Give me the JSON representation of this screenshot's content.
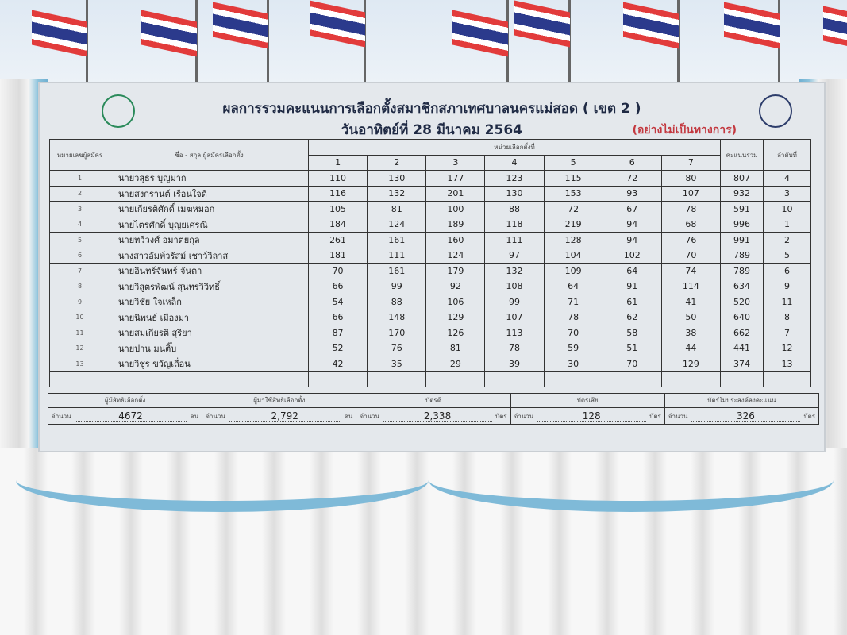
{
  "board": {
    "title": "ผลการรวมคะแนนการเลือกตั้งสมาชิกสภาเทศบาลนครแม่สอด ( เขต 2 )",
    "date": "วันอาทิตย์ที่  28  มีนาคม  2564",
    "status": "(อย่างไม่เป็นทางการ)",
    "headers": {
      "number": "หมายเลขผู้สมัคร",
      "name": "ชื่อ - สกุล ผู้สมัครเลือกตั้ง",
      "units": "หน่วยเลือกตั้งที่",
      "unit_numbers": [
        "1",
        "2",
        "3",
        "4",
        "5",
        "6",
        "7"
      ],
      "total": "คะแนนรวม",
      "rank": "ลำดับที่"
    },
    "rows": [
      {
        "no": "1",
        "name": "นายวสุธร  บุญมาก",
        "votes": [
          "110",
          "130",
          "177",
          "123",
          "115",
          "72",
          "80"
        ],
        "total": "807",
        "rank": "4"
      },
      {
        "no": "2",
        "name": "นายสงกรานต์  เรือนใจดี",
        "votes": [
          "116",
          "132",
          "201",
          "130",
          "153",
          "93",
          "107"
        ],
        "total": "932",
        "rank": "3"
      },
      {
        "no": "3",
        "name": "นายเกียรติศักดิ์  เมฆหมอก",
        "votes": [
          "105",
          "81",
          "100",
          "88",
          "72",
          "67",
          "78"
        ],
        "total": "591",
        "rank": "10"
      },
      {
        "no": "4",
        "name": "นายไตรศักดิ์  บุญยเศรณี",
        "votes": [
          "184",
          "124",
          "189",
          "118",
          "219",
          "94",
          "68"
        ],
        "total": "996",
        "rank": "1"
      },
      {
        "no": "5",
        "name": "นายทวีวงศ์  อมาตยกุล",
        "votes": [
          "261",
          "161",
          "160",
          "111",
          "128",
          "94",
          "76"
        ],
        "total": "991",
        "rank": "2"
      },
      {
        "no": "6",
        "name": "นางสาวอัมพ์วรัสม์  เชาว์วิลาส",
        "votes": [
          "181",
          "111",
          "124",
          "97",
          "104",
          "102",
          "70"
        ],
        "total": "789",
        "rank": "5"
      },
      {
        "no": "7",
        "name": "นายอินทร์จันทร์  จันตา",
        "votes": [
          "70",
          "161",
          "179",
          "132",
          "109",
          "64",
          "74"
        ],
        "total": "789",
        "rank": "6"
      },
      {
        "no": "8",
        "name": "นายวิสูตรพัฒน์  สุนทรวิวิทธิ์",
        "votes": [
          "66",
          "99",
          "92",
          "108",
          "64",
          "91",
          "114"
        ],
        "total": "634",
        "rank": "9"
      },
      {
        "no": "9",
        "name": "นายวิชัย  ใจเหล็ก",
        "votes": [
          "54",
          "88",
          "106",
          "99",
          "71",
          "61",
          "41"
        ],
        "total": "520",
        "rank": "11"
      },
      {
        "no": "10",
        "name": "นายนิพนธ์  เมืองมา",
        "votes": [
          "66",
          "148",
          "129",
          "107",
          "78",
          "62",
          "50"
        ],
        "total": "640",
        "rank": "8"
      },
      {
        "no": "11",
        "name": "นายสมเกียรติ  สุริยา",
        "votes": [
          "87",
          "170",
          "126",
          "113",
          "70",
          "58",
          "38"
        ],
        "total": "662",
        "rank": "7"
      },
      {
        "no": "12",
        "name": "นายปาน  มนติ๊บ",
        "votes": [
          "52",
          "76",
          "81",
          "78",
          "59",
          "51",
          "44"
        ],
        "total": "441",
        "rank": "12"
      },
      {
        "no": "13",
        "name": "นายวิชูร  ขวัญเถื่อน",
        "votes": [
          "42",
          "35",
          "29",
          "39",
          "30",
          "70",
          "129"
        ],
        "total": "374",
        "rank": "13"
      }
    ],
    "summary": [
      {
        "label": "ผู้มีสิทธิเลือกตั้ง",
        "prefix": "จำนวน",
        "value": "4672",
        "unit": "คน"
      },
      {
        "label": "ผู้มาใช้สิทธิเลือกตั้ง",
        "prefix": "จำนวน",
        "value": "2,792",
        "unit": "คน"
      },
      {
        "label": "บัตรดี",
        "prefix": "จำนวน",
        "value": "2,338",
        "unit": "บัตร"
      },
      {
        "label": "บัตรเสีย",
        "prefix": "จำนวน",
        "value": "128",
        "unit": "บัตร"
      },
      {
        "label": "บัตรไม่ประสงค์ลงคะแนน",
        "prefix": "จำนวน",
        "value": "326",
        "unit": "บัตร"
      }
    ]
  },
  "colors": {
    "status": "#c3383f",
    "drape": "#7fbad8",
    "title": "#1f2a44"
  }
}
